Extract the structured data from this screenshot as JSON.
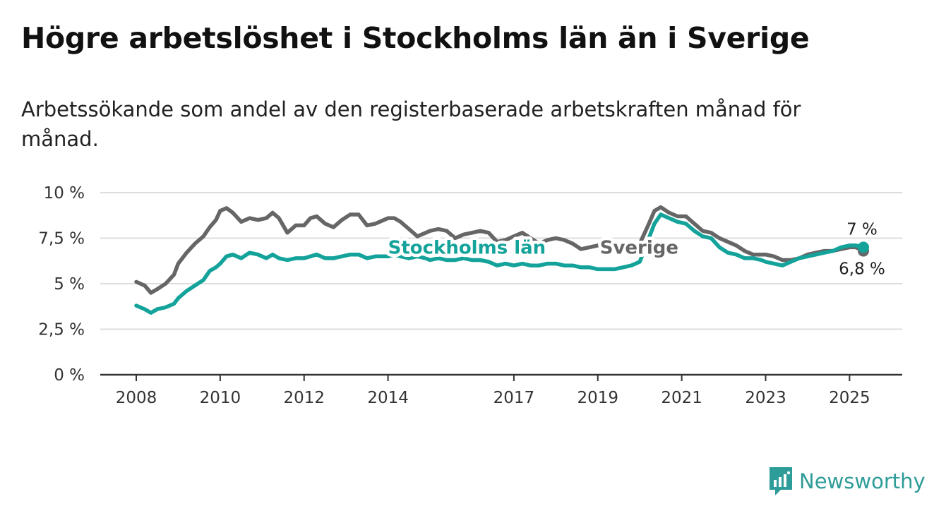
{
  "title": "Högre arbetslöshet i Stockholms län än i Sverige",
  "subtitle": "Arbetssökande som andel av den registerbaserade arbetskraften månad för månad.",
  "brand": {
    "name": "Newsworthy",
    "color": "#2e9c98",
    "icon": "newsworthy-logo-icon"
  },
  "colors": {
    "stockholm": "#14a39a",
    "sverige": "#666666",
    "grid": "#dddddd",
    "axis": "#333333"
  },
  "chart_data": {
    "type": "line",
    "x_range": [
      2008.0,
      2025.33
    ],
    "ylim": [
      0,
      10
    ],
    "grid": true,
    "y_ticks": [
      {
        "value": 0,
        "label": "0 %"
      },
      {
        "value": 2.5,
        "label": "2,5 %"
      },
      {
        "value": 5,
        "label": "5 %"
      },
      {
        "value": 7.5,
        "label": "7,5 %"
      },
      {
        "value": 10,
        "label": "10 %"
      }
    ],
    "x_ticks": [
      {
        "value": 2008,
        "label": "2008"
      },
      {
        "value": 2010,
        "label": "2010"
      },
      {
        "value": 2012,
        "label": "2012"
      },
      {
        "value": 2014,
        "label": "2014"
      },
      {
        "value": 2017,
        "label": "2017"
      },
      {
        "value": 2019,
        "label": "2019"
      },
      {
        "value": 2021,
        "label": "2021"
      },
      {
        "value": 2023,
        "label": "2023"
      },
      {
        "value": 2025,
        "label": "2025"
      }
    ],
    "series": [
      {
        "name": "Sverige",
        "color": "#666666",
        "end_label": "6,8 %",
        "points": [
          [
            2008.0,
            5.1
          ],
          [
            2008.2,
            4.9
          ],
          [
            2008.35,
            4.5
          ],
          [
            2008.5,
            4.7
          ],
          [
            2008.7,
            5.0
          ],
          [
            2008.9,
            5.5
          ],
          [
            2009.0,
            6.1
          ],
          [
            2009.2,
            6.7
          ],
          [
            2009.4,
            7.2
          ],
          [
            2009.6,
            7.6
          ],
          [
            2009.75,
            8.1
          ],
          [
            2009.9,
            8.5
          ],
          [
            2010.0,
            9.0
          ],
          [
            2010.15,
            9.15
          ],
          [
            2010.3,
            8.9
          ],
          [
            2010.5,
            8.4
          ],
          [
            2010.7,
            8.6
          ],
          [
            2010.9,
            8.5
          ],
          [
            2011.1,
            8.6
          ],
          [
            2011.25,
            8.9
          ],
          [
            2011.4,
            8.6
          ],
          [
            2011.6,
            7.8
          ],
          [
            2011.8,
            8.2
          ],
          [
            2012.0,
            8.2
          ],
          [
            2012.15,
            8.6
          ],
          [
            2012.3,
            8.7
          ],
          [
            2012.5,
            8.3
          ],
          [
            2012.7,
            8.1
          ],
          [
            2012.9,
            8.5
          ],
          [
            2013.1,
            8.8
          ],
          [
            2013.3,
            8.8
          ],
          [
            2013.5,
            8.2
          ],
          [
            2013.7,
            8.3
          ],
          [
            2013.9,
            8.5
          ],
          [
            2014.0,
            8.6
          ],
          [
            2014.15,
            8.6
          ],
          [
            2014.3,
            8.4
          ],
          [
            2014.5,
            8.0
          ],
          [
            2014.7,
            7.6
          ],
          [
            2014.9,
            7.8
          ],
          [
            2015.0,
            7.9
          ],
          [
            2015.2,
            8.0
          ],
          [
            2015.4,
            7.9
          ],
          [
            2015.6,
            7.5
          ],
          [
            2015.8,
            7.7
          ],
          [
            2016.0,
            7.8
          ],
          [
            2016.2,
            7.9
          ],
          [
            2016.4,
            7.8
          ],
          [
            2016.6,
            7.3
          ],
          [
            2016.8,
            7.4
          ],
          [
            2017.0,
            7.6
          ],
          [
            2017.2,
            7.8
          ],
          [
            2017.4,
            7.5
          ],
          [
            2017.6,
            7.2
          ],
          [
            2017.8,
            7.4
          ],
          [
            2018.0,
            7.5
          ],
          [
            2018.2,
            7.4
          ],
          [
            2018.4,
            7.2
          ],
          [
            2018.6,
            6.9
          ],
          [
            2018.8,
            7.0
          ],
          [
            2019.0,
            7.1
          ],
          [
            2019.2,
            7.2
          ],
          [
            2019.4,
            7.1
          ],
          [
            2019.6,
            6.9
          ],
          [
            2019.8,
            7.0
          ],
          [
            2020.0,
            7.2
          ],
          [
            2020.2,
            8.2
          ],
          [
            2020.35,
            9.0
          ],
          [
            2020.5,
            9.2
          ],
          [
            2020.7,
            8.9
          ],
          [
            2020.9,
            8.7
          ],
          [
            2021.1,
            8.7
          ],
          [
            2021.3,
            8.3
          ],
          [
            2021.5,
            7.9
          ],
          [
            2021.7,
            7.8
          ],
          [
            2021.9,
            7.5
          ],
          [
            2022.1,
            7.3
          ],
          [
            2022.3,
            7.1
          ],
          [
            2022.5,
            6.8
          ],
          [
            2022.7,
            6.6
          ],
          [
            2022.9,
            6.6
          ],
          [
            2023.0,
            6.6
          ],
          [
            2023.2,
            6.5
          ],
          [
            2023.4,
            6.3
          ],
          [
            2023.6,
            6.3
          ],
          [
            2023.8,
            6.4
          ],
          [
            2024.0,
            6.6
          ],
          [
            2024.2,
            6.7
          ],
          [
            2024.4,
            6.8
          ],
          [
            2024.6,
            6.8
          ],
          [
            2024.8,
            6.9
          ],
          [
            2025.0,
            7.0
          ],
          [
            2025.15,
            7.0
          ],
          [
            2025.33,
            6.8
          ]
        ]
      },
      {
        "name": "Stockholms län",
        "color": "#14a39a",
        "end_label": "7 %",
        "points": [
          [
            2008.0,
            3.8
          ],
          [
            2008.2,
            3.6
          ],
          [
            2008.35,
            3.4
          ],
          [
            2008.5,
            3.6
          ],
          [
            2008.7,
            3.7
          ],
          [
            2008.9,
            3.9
          ],
          [
            2009.0,
            4.2
          ],
          [
            2009.2,
            4.6
          ],
          [
            2009.4,
            4.9
          ],
          [
            2009.6,
            5.2
          ],
          [
            2009.75,
            5.7
          ],
          [
            2009.9,
            5.9
          ],
          [
            2010.0,
            6.1
          ],
          [
            2010.15,
            6.5
          ],
          [
            2010.3,
            6.6
          ],
          [
            2010.5,
            6.4
          ],
          [
            2010.7,
            6.7
          ],
          [
            2010.9,
            6.6
          ],
          [
            2011.1,
            6.4
          ],
          [
            2011.25,
            6.6
          ],
          [
            2011.4,
            6.4
          ],
          [
            2011.6,
            6.3
          ],
          [
            2011.8,
            6.4
          ],
          [
            2012.0,
            6.4
          ],
          [
            2012.15,
            6.5
          ],
          [
            2012.3,
            6.6
          ],
          [
            2012.5,
            6.4
          ],
          [
            2012.7,
            6.4
          ],
          [
            2012.9,
            6.5
          ],
          [
            2013.1,
            6.6
          ],
          [
            2013.3,
            6.6
          ],
          [
            2013.5,
            6.4
          ],
          [
            2013.7,
            6.5
          ],
          [
            2013.9,
            6.5
          ],
          [
            2014.0,
            6.5
          ],
          [
            2014.15,
            6.6
          ],
          [
            2014.3,
            6.5
          ],
          [
            2014.5,
            6.4
          ],
          [
            2014.7,
            6.5
          ],
          [
            2014.9,
            6.4
          ],
          [
            2015.0,
            6.3
          ],
          [
            2015.2,
            6.4
          ],
          [
            2015.4,
            6.3
          ],
          [
            2015.6,
            6.3
          ],
          [
            2015.8,
            6.4
          ],
          [
            2016.0,
            6.3
          ],
          [
            2016.2,
            6.3
          ],
          [
            2016.4,
            6.2
          ],
          [
            2016.6,
            6.0
          ],
          [
            2016.8,
            6.1
          ],
          [
            2017.0,
            6.0
          ],
          [
            2017.2,
            6.1
          ],
          [
            2017.4,
            6.0
          ],
          [
            2017.6,
            6.0
          ],
          [
            2017.8,
            6.1
          ],
          [
            2018.0,
            6.1
          ],
          [
            2018.2,
            6.0
          ],
          [
            2018.4,
            6.0
          ],
          [
            2018.6,
            5.9
          ],
          [
            2018.8,
            5.9
          ],
          [
            2019.0,
            5.8
          ],
          [
            2019.2,
            5.8
          ],
          [
            2019.4,
            5.8
          ],
          [
            2019.6,
            5.9
          ],
          [
            2019.8,
            6.0
          ],
          [
            2020.0,
            6.2
          ],
          [
            2020.2,
            7.4
          ],
          [
            2020.35,
            8.3
          ],
          [
            2020.5,
            8.8
          ],
          [
            2020.7,
            8.6
          ],
          [
            2020.9,
            8.4
          ],
          [
            2021.1,
            8.3
          ],
          [
            2021.3,
            7.9
          ],
          [
            2021.5,
            7.6
          ],
          [
            2021.7,
            7.5
          ],
          [
            2021.9,
            7.0
          ],
          [
            2022.1,
            6.7
          ],
          [
            2022.3,
            6.6
          ],
          [
            2022.5,
            6.4
          ],
          [
            2022.7,
            6.4
          ],
          [
            2022.9,
            6.3
          ],
          [
            2023.0,
            6.2
          ],
          [
            2023.2,
            6.1
          ],
          [
            2023.4,
            6.0
          ],
          [
            2023.6,
            6.2
          ],
          [
            2023.8,
            6.4
          ],
          [
            2024.0,
            6.5
          ],
          [
            2024.2,
            6.6
          ],
          [
            2024.4,
            6.7
          ],
          [
            2024.6,
            6.8
          ],
          [
            2024.8,
            7.0
          ],
          [
            2025.0,
            7.1
          ],
          [
            2025.15,
            7.1
          ],
          [
            2025.33,
            7.0
          ]
        ]
      }
    ],
    "labels": [
      {
        "text": "Stockholms län",
        "series": "Stockholms län",
        "x": 2014.0,
        "y": 7.0
      },
      {
        "text": "Sverige",
        "series": "Sverige",
        "x": 2019.05,
        "y": 7.0
      }
    ]
  }
}
